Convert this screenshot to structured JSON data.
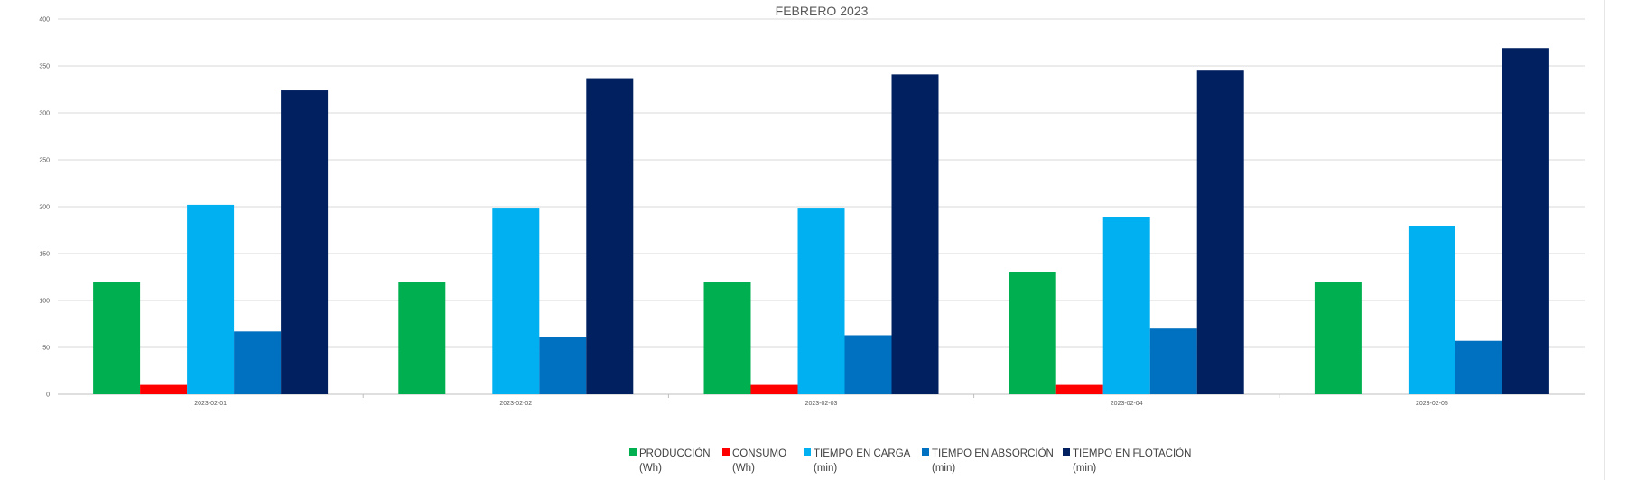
{
  "chart_data": {
    "type": "bar",
    "title": "FEBRERO 2023",
    "categories": [
      "2023-02-01",
      "2023-02-02",
      "2023-02-03",
      "2023-02-04",
      "2023-02-05"
    ],
    "ylim": [
      0,
      400
    ],
    "yticks": [
      0,
      50,
      100,
      150,
      200,
      250,
      300,
      350,
      400
    ],
    "grid": true,
    "legend_position": "bottom",
    "series": [
      {
        "name": "PRODUCCIÓN",
        "unit": "(Wh)",
        "color": "#00b050",
        "values": [
          120,
          120,
          120,
          130,
          120
        ]
      },
      {
        "name": "CONSUMO",
        "unit": "(Wh)",
        "color": "#ff0000",
        "values": [
          10,
          0,
          10,
          10,
          0
        ]
      },
      {
        "name": "TIEMPO EN CARGA",
        "unit": "(min)",
        "color": "#00b0f0",
        "values": [
          202,
          198,
          198,
          189,
          179
        ]
      },
      {
        "name": "TIEMPO EN ABSORCIÓN",
        "unit": "(min)",
        "color": "#0070c0",
        "values": [
          67,
          61,
          63,
          70,
          57
        ]
      },
      {
        "name": "TIEMPO EN FLOTACIÓN",
        "unit": "(min)",
        "color": "#002060",
        "values": [
          324,
          336,
          341,
          345,
          369
        ]
      }
    ]
  }
}
